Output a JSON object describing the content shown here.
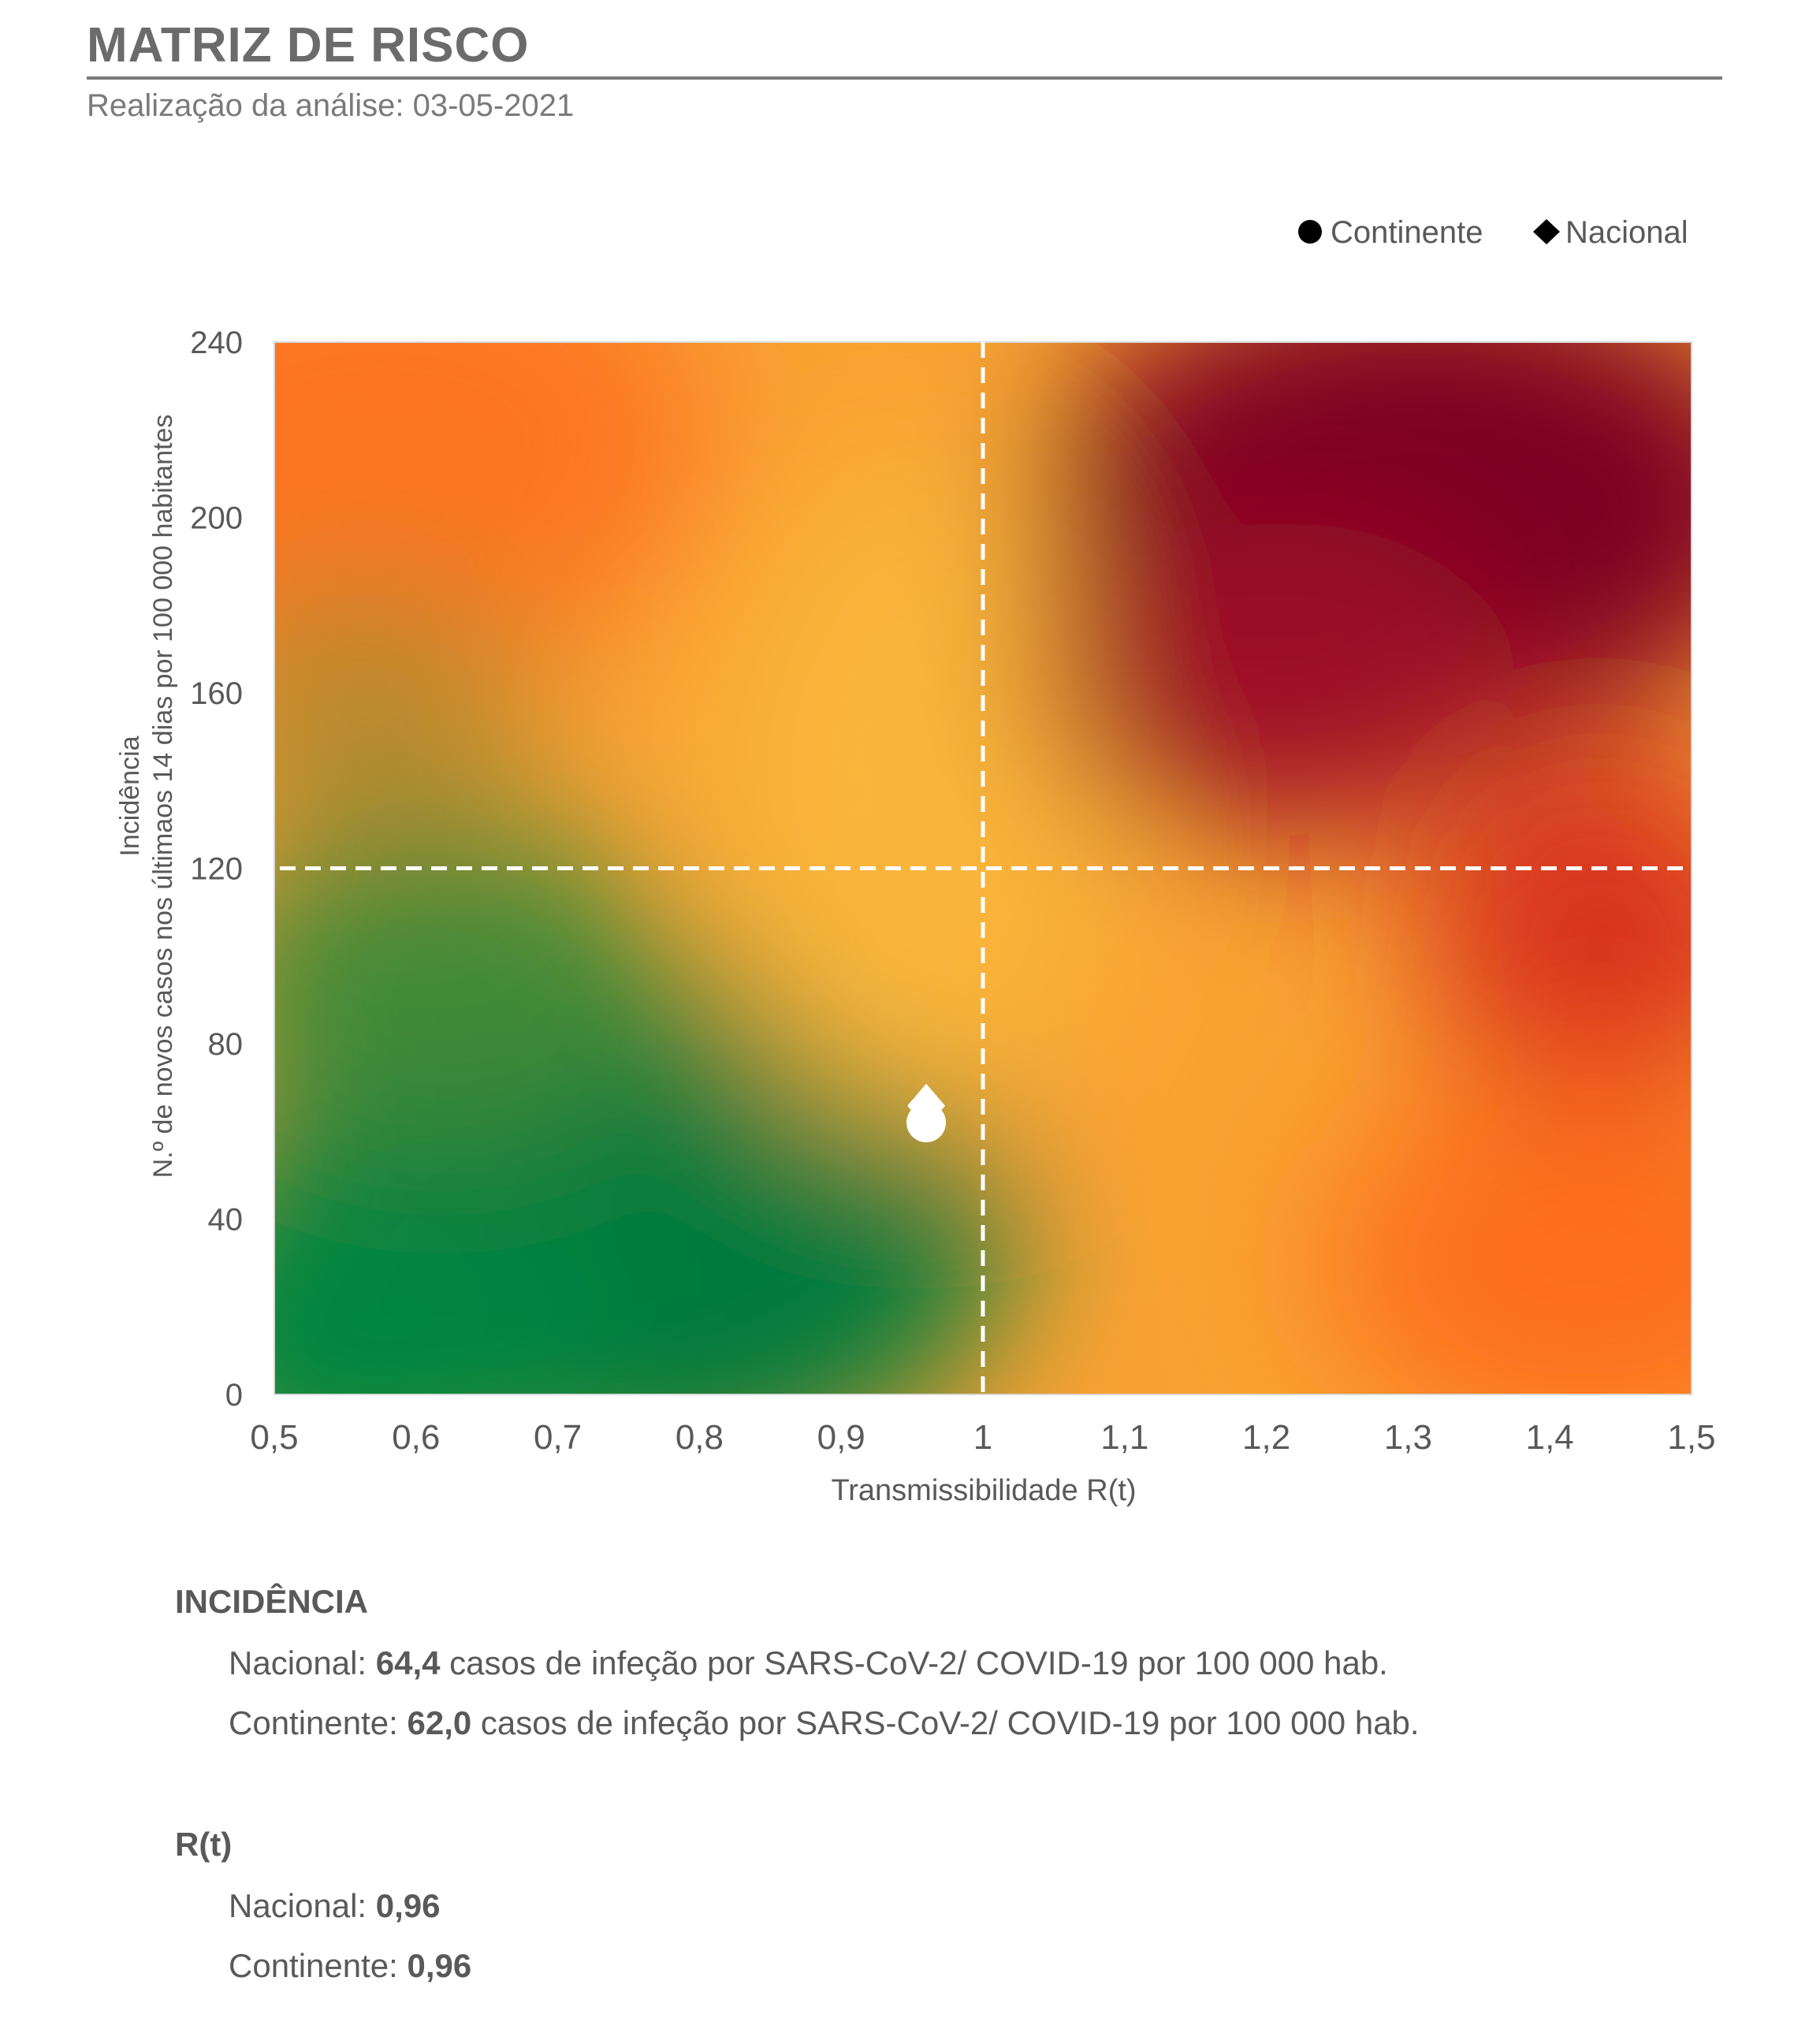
{
  "header": {
    "title": "MATRIZ DE RISCO",
    "subtitle": "Realização da análise: 03-05-2021"
  },
  "chart_data": {
    "type": "scatter",
    "title": "",
    "xlabel": "Transmissibilidade R(t)",
    "ylabel_line1": "Incidência",
    "ylabel_line2": "N.º de novos casos nos últimaos 14 dias por 100 000 habitantes",
    "xlim": [
      0.5,
      1.5
    ],
    "ylim": [
      0,
      240
    ],
    "x_ticks": [
      0.5,
      0.6,
      0.7,
      0.8,
      0.9,
      1.0,
      1.1,
      1.2,
      1.3,
      1.4,
      1.5
    ],
    "x_tick_labels": [
      "0,5",
      "0,6",
      "0,7",
      "0,8",
      "0,9",
      "1",
      "1,1",
      "1,2",
      "1,3",
      "1,4",
      "1,5"
    ],
    "y_ticks": [
      0,
      40,
      80,
      120,
      160,
      200,
      240
    ],
    "y_tick_labels": [
      "0",
      "40",
      "80",
      "120",
      "160",
      "200",
      "240"
    ],
    "threshold_lines": {
      "x": 1.0,
      "y": 120,
      "style": "dashed",
      "color": "#ffffff"
    },
    "background": "risk heatmap gradient (green low-risk, yellow/orange, dark red high-risk)",
    "legend_position": "top-right",
    "series": [
      {
        "name": "Continente",
        "marker": "circle",
        "x": [
          0.96
        ],
        "y": [
          62.0
        ],
        "color": "#ffffff"
      },
      {
        "name": "Nacional",
        "marker": "diamond",
        "x": [
          0.96
        ],
        "y": [
          64.4
        ],
        "color": "#ffffff"
      }
    ],
    "legend_color": "#000000"
  },
  "incidencia": {
    "heading": "INCIDÊNCIA",
    "rows": [
      {
        "label": "Nacional: ",
        "value": "64,4",
        "suffix": " casos de infeção por SARS-CoV-2/ COVID-19 por 100 000 hab."
      },
      {
        "label": "Continente: ",
        "value": "62,0",
        "suffix": " casos de infeção por SARS-CoV-2/ COVID-19 por 100 000 hab."
      }
    ]
  },
  "rt": {
    "heading": "R(t)",
    "rows": [
      {
        "label": "Nacional: ",
        "value": "0,96"
      },
      {
        "label": "Continente: ",
        "value": "0,96"
      }
    ]
  },
  "colors": {
    "green": "#007a3d",
    "yellow": "#f9b233",
    "orange": "#fd7421",
    "dark_red": "#7d0022"
  }
}
